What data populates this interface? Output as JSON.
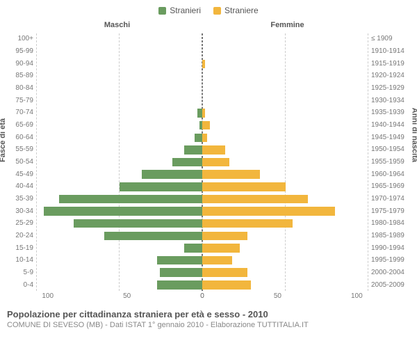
{
  "legend": {
    "male": {
      "label": "Stranieri",
      "color": "#6a9c5f"
    },
    "female": {
      "label": "Straniere",
      "color": "#f2b63d"
    }
  },
  "titles": {
    "left_header": "Maschi",
    "right_header": "Femmine",
    "left_axis": "Fasce di età",
    "right_axis": "Anni di nascita"
  },
  "age_groups": [
    "100+",
    "95-99",
    "90-94",
    "85-89",
    "80-84",
    "75-79",
    "70-74",
    "65-69",
    "60-64",
    "55-59",
    "50-54",
    "45-49",
    "40-44",
    "35-39",
    "30-34",
    "25-29",
    "20-24",
    "15-19",
    "10-14",
    "5-9",
    "0-4"
  ],
  "birth_years": [
    "≤ 1909",
    "1910-1914",
    "1915-1919",
    "1920-1924",
    "1925-1929",
    "1930-1934",
    "1935-1939",
    "1940-1944",
    "1945-1949",
    "1950-1954",
    "1955-1959",
    "1960-1964",
    "1965-1969",
    "1970-1974",
    "1975-1979",
    "1980-1984",
    "1985-1989",
    "1990-1994",
    "1995-1999",
    "2000-2004",
    "2005-2009"
  ],
  "chart": {
    "type": "population-pyramid",
    "x_max": 110,
    "x_ticks": [
      0,
      50,
      100
    ],
    "grid_color": "#cccccc",
    "zero_line_color": "#777777",
    "background_color": "#ffffff",
    "bar_gap_ratio": 0.2,
    "male_values": [
      0,
      0,
      0,
      0,
      0,
      0,
      3,
      2,
      5,
      12,
      20,
      40,
      55,
      95,
      105,
      85,
      65,
      12,
      30,
      28,
      30
    ],
    "female_values": [
      0,
      0,
      2,
      0,
      0,
      0,
      2,
      5,
      3,
      15,
      18,
      38,
      55,
      70,
      88,
      60,
      30,
      25,
      20,
      30,
      32
    ]
  },
  "footer": {
    "title": "Popolazione per cittadinanza straniera per età e sesso - 2010",
    "subtitle": "COMUNE DI SEVESO (MB) - Dati ISTAT 1° gennaio 2010 - Elaborazione TUTTITALIA.IT"
  }
}
